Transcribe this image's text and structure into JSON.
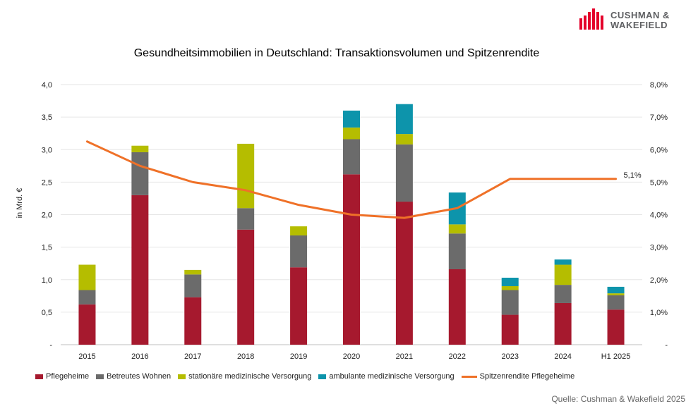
{
  "logo": {
    "line1": "CUSHMAN &",
    "line2": "WAKEFIELD",
    "color": "#e4002b"
  },
  "chart_data": {
    "type": "bar",
    "stacked": true,
    "title": "Gesundheitsimmobilien in Deutschland: Transaktionsvolumen und Spitzenrendite",
    "ylabel": "in Mrd. €",
    "xlabel": "",
    "ylim": [
      0,
      4.0
    ],
    "y2lim": [
      0,
      8.0
    ],
    "yticks": [
      "-",
      "0,5",
      "1,0",
      "1,5",
      "2,0",
      "2,5",
      "3,0",
      "3,5",
      "4,0"
    ],
    "y2ticks": [
      "-",
      "1,0%",
      "2,0%",
      "3,0%",
      "4,0%",
      "5,0%",
      "6,0%",
      "7,0%",
      "8,0%"
    ],
    "categories": [
      "2015",
      "2016",
      "2017",
      "2018",
      "2019",
      "2020",
      "2021",
      "2022",
      "2023",
      "2024",
      "H1 2025"
    ],
    "series": [
      {
        "name": "Pflegeheime",
        "color": "#a6192e",
        "values": [
          0.62,
          2.3,
          0.73,
          1.77,
          1.19,
          2.62,
          2.2,
          1.16,
          0.46,
          0.64,
          0.54
        ]
      },
      {
        "name": "Betreutes Wohnen",
        "color": "#6b6b6b",
        "values": [
          0.22,
          0.66,
          0.35,
          0.33,
          0.49,
          0.54,
          0.88,
          0.55,
          0.38,
          0.28,
          0.22
        ]
      },
      {
        "name": "stationäre medizinische Versorgung",
        "color": "#b5bd00",
        "values": [
          0.39,
          0.1,
          0.07,
          0.99,
          0.14,
          0.18,
          0.16,
          0.14,
          0.06,
          0.31,
          0.03
        ]
      },
      {
        "name": "ambulante medizinische Versorgung",
        "color": "#0d94ab",
        "values": [
          0.0,
          0.0,
          0.0,
          0.0,
          0.0,
          0.26,
          0.46,
          0.49,
          0.13,
          0.08,
          0.1
        ]
      }
    ],
    "line_series": {
      "name": "Spitzenrendite Pflegeheime",
      "color": "#ef7128",
      "axis": "right",
      "values": [
        6.25,
        5.5,
        5.0,
        4.75,
        4.3,
        4.0,
        3.9,
        4.2,
        5.1,
        5.1,
        5.1
      ],
      "end_label": "5,1%"
    },
    "grid": true,
    "legend_position": "bottom"
  },
  "source": "Quelle: Cushman & Wakefield 2025"
}
